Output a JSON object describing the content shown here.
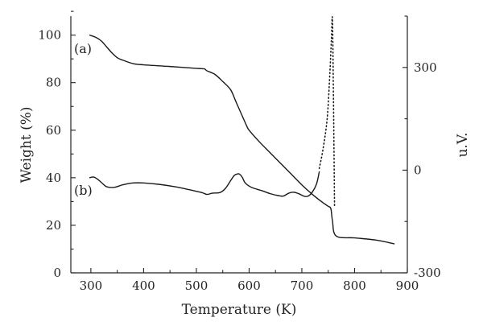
{
  "chart_data": {
    "type": "line",
    "xlabel": "Temperature (K)",
    "ylabel": "Weight (%)",
    "y2label": "u.V.",
    "xlim": [
      262,
      900
    ],
    "ylim": [
      0,
      108
    ],
    "y2lim": [
      -300,
      450
    ],
    "x_ticks": [
      300,
      400,
      500,
      600,
      700,
      800,
      900
    ],
    "y_ticks": [
      0,
      20,
      40,
      60,
      80,
      100
    ],
    "y2_ticks": [
      -300,
      0,
      300
    ],
    "grid": false,
    "annotations": [
      "(a)",
      "(b)"
    ],
    "series": [
      {
        "axis": "left",
        "style": "solid",
        "x": [
          298,
          310,
          320,
          330,
          340,
          350,
          360,
          380,
          400,
          450,
          500,
          515,
          520,
          535,
          550,
          565,
          575,
          585,
          590,
          595,
          600,
          620,
          640,
          660,
          680,
          700,
          720,
          740,
          750,
          755,
          758,
          765,
          800,
          840,
          875
        ],
        "y": [
          100,
          99,
          97.5,
          95,
          92.5,
          90.5,
          89.5,
          88,
          87.5,
          86.8,
          86,
          85.8,
          85,
          83.5,
          80.5,
          77,
          72,
          67,
          64.5,
          62,
          60,
          55,
          50.5,
          46,
          41.5,
          37,
          33,
          29.5,
          28,
          27,
          22,
          15.5,
          14.7,
          13.8,
          12.2
        ]
      },
      {
        "axis": "left",
        "style": "solid",
        "x": [
          298,
          305,
          312,
          320,
          330,
          345,
          360,
          380,
          400,
          430,
          460,
          490,
          510,
          520,
          530,
          545,
          555,
          565,
          572,
          578,
          582,
          587,
          592,
          600,
          610,
          625,
          640,
          655,
          665,
          675,
          685,
          695,
          705,
          712,
          720,
          728,
          733
        ],
        "y": [
          40,
          40.3,
          39.5,
          38,
          36.2,
          36,
          37,
          37.8,
          37.8,
          37.2,
          36.2,
          34.8,
          33.8,
          33,
          33.5,
          33.8,
          35.5,
          38.8,
          41,
          41.6,
          41.5,
          40.2,
          38,
          36.5,
          35.5,
          34.5,
          33.3,
          32.5,
          32.3,
          33.5,
          33.9,
          33.2,
          32.2,
          32.3,
          34,
          37.5,
          42.5
        ]
      },
      {
        "axis": "right",
        "style": "dotted",
        "x": [
          733,
          740,
          748,
          753,
          756,
          758,
          760,
          762
        ],
        "y": [
          5,
          60,
          150,
          280,
          380,
          440,
          200,
          -110
        ]
      }
    ]
  }
}
